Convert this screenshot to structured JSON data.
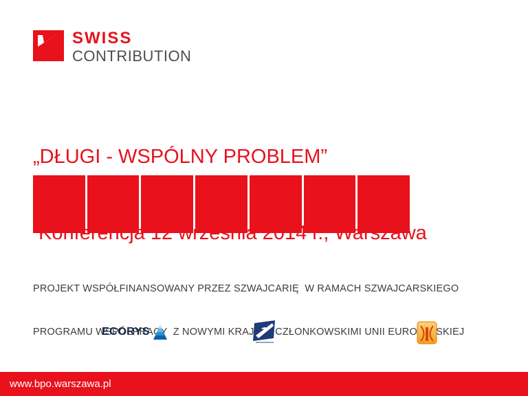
{
  "colors": {
    "accent_red": "#e8111c",
    "text_dark": "#3c3c3b",
    "logo_gray": "#4d4d4f",
    "ecorys_navy": "#15284b",
    "partner_navy": "#1f3a7a",
    "partner_orange": "#f5a11a"
  },
  "swiss_logo": {
    "line1": "SWISS",
    "line2": "CONTRIBUTION"
  },
  "title": {
    "line1": "„DŁUGI - WSPÓLNY PROBLEM”",
    "line2": " Konferencja 12 września 2014 r., Warszawa"
  },
  "banner": {
    "segments": 7
  },
  "funding": {
    "line1": "PROJEKT WSPÓŁFINANSOWANY PRZEZ SZWAJCARIĘ  W RAMACH SZWAJCARSKIEGO",
    "line2": "PROGRAMU WSPÓŁPRACY  Z NOWYMI KRAJAMI CZŁONKOWSKIMI UNII EUROPEJSKIEJ"
  },
  "partners": {
    "ecorys": "ECORYS"
  },
  "footer": {
    "url": "www.bpo.warszawa.pl"
  }
}
